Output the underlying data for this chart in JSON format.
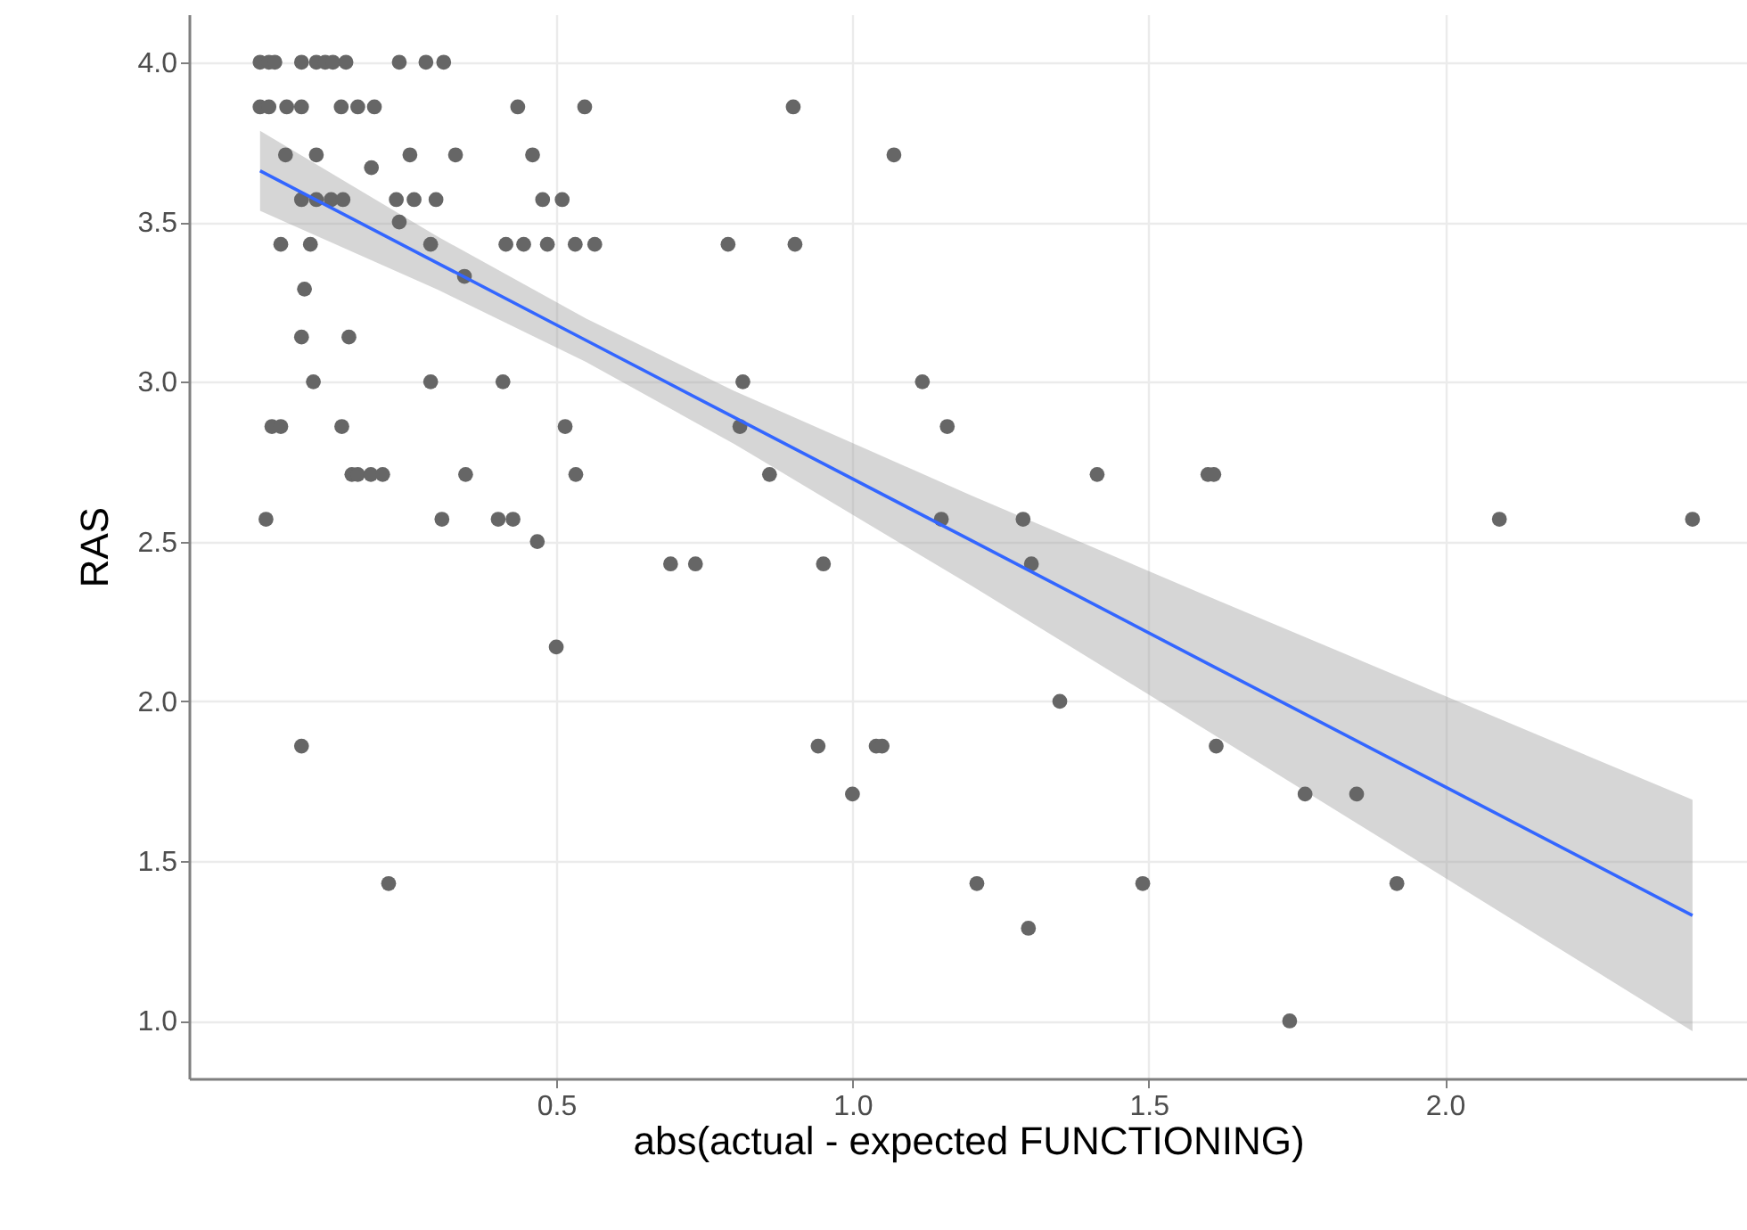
{
  "chart_data": {
    "type": "scatter",
    "xlabel": "abs(actual - expected FUNCTIONING)",
    "ylabel": "RAS",
    "xlim": [
      -0.12,
      2.51
    ],
    "ylim": [
      0.82,
      4.15
    ],
    "xticks": [
      0.5,
      {
        "value": 1.0,
        "label": "1.0"
      },
      1.5,
      {
        "value": 2.0,
        "label": "2.0"
      }
    ],
    "yticks": [
      {
        "value": 1.0,
        "label": "1.0"
      },
      {
        "value": 1.5,
        "label": "1.5"
      },
      {
        "value": 2.0,
        "label": "2.0"
      },
      {
        "value": 2.5,
        "label": "2.5"
      },
      {
        "value": 3.0,
        "label": "3.0"
      },
      {
        "value": 3.5,
        "label": "3.5"
      },
      {
        "value": 4.0,
        "label": "4.0"
      }
    ],
    "grid": true,
    "series": [
      {
        "type": "scatter",
        "color": "#666666",
        "marker": "circle",
        "x": [
          0.0,
          0.015,
          0.025,
          0.07,
          0.095,
          0.11,
          0.123,
          0.145,
          0.235,
          0.28,
          0.31,
          0.0,
          0.015,
          0.045,
          0.07,
          0.137,
          0.165,
          0.193,
          0.435,
          0.548,
          0.9,
          0.043,
          0.095,
          0.253,
          0.33,
          0.46,
          1.07,
          0.188,
          0.07,
          0.095,
          0.12,
          0.14,
          0.23,
          0.26,
          0.297,
          0.477,
          0.51,
          0.235,
          0.035,
          0.085,
          0.288,
          0.415,
          0.445,
          0.485,
          0.532,
          0.565,
          0.79,
          0.903,
          0.345,
          0.075,
          0.07,
          0.15,
          0.09,
          0.288,
          0.41,
          0.815,
          1.118,
          0.02,
          0.035,
          0.138,
          0.515,
          0.81,
          1.16,
          0.155,
          0.165,
          0.187,
          0.207,
          0.347,
          0.533,
          0.86,
          1.413,
          1.6,
          1.61,
          0.01,
          0.307,
          0.402,
          0.427,
          1.15,
          1.288,
          2.092,
          2.418,
          0.468,
          0.693,
          0.735,
          0.951,
          1.302,
          0.5,
          1.35,
          0.07,
          0.942,
          1.04,
          1.05,
          1.614,
          1.0,
          1.764,
          1.851,
          0.217,
          1.21,
          1.49,
          1.919,
          1.297,
          1.738
        ],
        "values": [
          4.0,
          4.0,
          4.0,
          4.0,
          4.0,
          4.0,
          4.0,
          4.0,
          4.0,
          4.0,
          4.0,
          3.86,
          3.86,
          3.86,
          3.86,
          3.86,
          3.86,
          3.86,
          3.86,
          3.86,
          3.86,
          3.71,
          3.71,
          3.71,
          3.71,
          3.71,
          3.71,
          3.67,
          3.57,
          3.57,
          3.57,
          3.57,
          3.57,
          3.57,
          3.57,
          3.57,
          3.57,
          3.5,
          3.43,
          3.43,
          3.43,
          3.43,
          3.43,
          3.43,
          3.43,
          3.43,
          3.43,
          3.43,
          3.33,
          3.29,
          3.14,
          3.14,
          3.0,
          3.0,
          3.0,
          3.0,
          3.0,
          2.86,
          2.86,
          2.86,
          2.86,
          2.86,
          2.86,
          2.71,
          2.71,
          2.71,
          2.71,
          2.71,
          2.71,
          2.71,
          2.71,
          2.71,
          2.71,
          2.57,
          2.57,
          2.57,
          2.57,
          2.57,
          2.57,
          2.57,
          2.57,
          2.5,
          2.43,
          2.43,
          2.43,
          2.43,
          2.17,
          2.0,
          1.86,
          1.86,
          1.86,
          1.86,
          1.86,
          1.71,
          1.71,
          1.71,
          1.43,
          1.43,
          1.43,
          1.43,
          1.29,
          1.0
        ]
      },
      {
        "type": "line",
        "color": "#3366ff",
        "x": [
          0,
          0.3,
          0.55,
          0.8,
          1.2,
          1.6,
          2.0,
          2.418
        ],
        "values": [
          3.66,
          3.371,
          3.13,
          2.889,
          2.504,
          2.118,
          1.733,
          1.33
        ],
        "lower": [
          3.535,
          3.288,
          3.062,
          2.806,
          2.363,
          1.907,
          1.448,
          0.968
        ],
        "upper": [
          3.785,
          3.454,
          3.198,
          2.972,
          2.645,
          2.329,
          2.017,
          1.692
        ]
      }
    ]
  }
}
